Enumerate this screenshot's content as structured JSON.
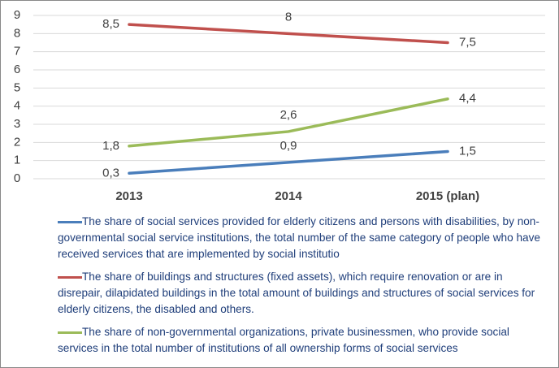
{
  "chart_data": {
    "type": "line",
    "categories": [
      "2013",
      "2014",
      "2015 (plan)"
    ],
    "series": [
      {
        "name": "The share of social services provided for elderly citizens and persons with disabilities, by non-governmental social service institutions, the total number of the same category of people who have received services that are implemented by social institutio",
        "color": "#4a7ebb",
        "values": [
          0.3,
          0.9,
          1.5
        ],
        "value_labels": [
          "0,3",
          "0,9",
          "1,5"
        ]
      },
      {
        "name": "The share of buildings and structures (fixed assets), which require renovation or are in disrepair, dilapidated buildings in the total amount of buildings and structures of social services for elderly citizens, the disabled and others.",
        "color": "#c0504d",
        "values": [
          8.5,
          8,
          7.5
        ],
        "value_labels": [
          "8,5",
          "8",
          "7,5"
        ]
      },
      {
        "name": "The share of non-governmental organizations, private businessmen, who provide social services in the total number of institutions of all ownership forms of social services",
        "color": "#9bbb59",
        "values": [
          1.8,
          2.6,
          4.4
        ],
        "value_labels": [
          "1,8",
          "2,6",
          "4,4"
        ]
      }
    ],
    "ylim": [
      0,
      9
    ],
    "yticks": [
      0,
      1,
      2,
      3,
      4,
      5,
      6,
      7,
      8,
      9
    ],
    "grid": true
  }
}
